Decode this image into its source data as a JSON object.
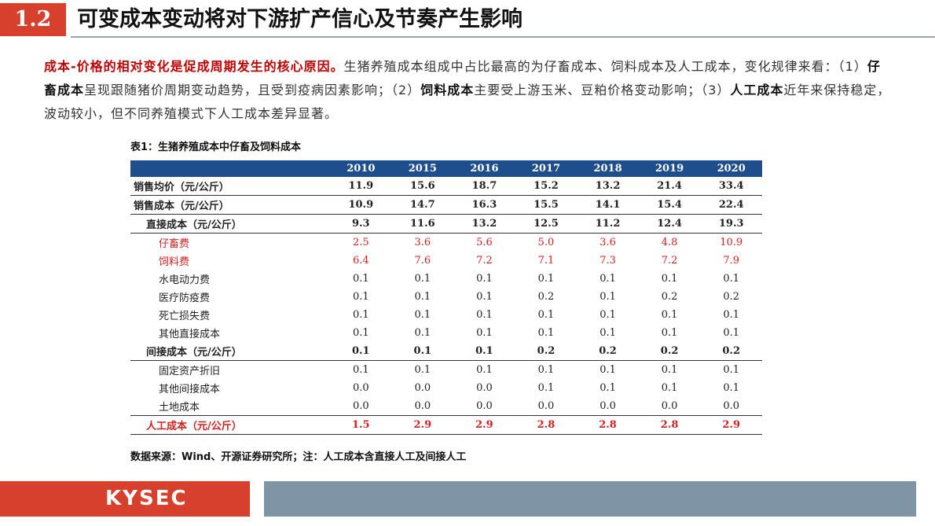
{
  "header": {
    "badge": "1.2",
    "title": "可变成本变动将对下游扩产信心及节奏产生影响"
  },
  "intro": {
    "lead": "成本-价格的相对变化是促成周期发生的核心原因。",
    "p1": "生猪养殖成本组成中占比最高的为仔畜成本、饲料成本及人工成本，变化规律来看：（1）",
    "k1": "仔畜成本",
    "p2": "呈现跟随猪价周期变动趋势，且受到疫病因素影响；（2）",
    "k2": "饲料成本",
    "p3": "主要受上游玉米、豆粕价格变动影响；（3）",
    "k3": "人工成本",
    "p4": "近年来保持稳定，波动较小，但不同养殖模式下人工成本差异显著。"
  },
  "table": {
    "caption": "表1：生猪养殖成本中仔畜及饲料成本",
    "years": [
      "2010",
      "2015",
      "2016",
      "2017",
      "2018",
      "2019",
      "2020"
    ],
    "rows": [
      {
        "label": "销售均价（元/公斤）",
        "values": [
          "11.9",
          "15.6",
          "18.7",
          "15.2",
          "13.2",
          "21.4",
          "33.4"
        ]
      },
      {
        "label": "销售成本（元/公斤）",
        "values": [
          "10.9",
          "14.7",
          "16.3",
          "15.5",
          "14.1",
          "15.4",
          "22.4"
        ]
      },
      {
        "label": "直接成本（元/公斤）",
        "values": [
          "9.3",
          "11.6",
          "13.2",
          "12.5",
          "11.2",
          "12.4",
          "19.3"
        ]
      },
      {
        "label": "仔畜费",
        "values": [
          "2.5",
          "3.6",
          "5.6",
          "5.0",
          "3.6",
          "4.8",
          "10.9"
        ]
      },
      {
        "label": "饲料费",
        "values": [
          "6.4",
          "7.6",
          "7.2",
          "7.1",
          "7.3",
          "7.2",
          "7.9"
        ]
      },
      {
        "label": "水电动力费",
        "values": [
          "0.1",
          "0.1",
          "0.1",
          "0.1",
          "0.1",
          "0.1",
          "0.1"
        ]
      },
      {
        "label": "医疗防疫费",
        "values": [
          "0.1",
          "0.1",
          "0.1",
          "0.2",
          "0.1",
          "0.2",
          "0.2"
        ]
      },
      {
        "label": "死亡损失费",
        "values": [
          "0.1",
          "0.1",
          "0.1",
          "0.1",
          "0.1",
          "0.1",
          "0.1"
        ]
      },
      {
        "label": "其他直接成本",
        "values": [
          "0.1",
          "0.1",
          "0.1",
          "0.1",
          "0.1",
          "0.1",
          "0.1"
        ]
      },
      {
        "label": "间接成本（元/公斤）",
        "values": [
          "0.1",
          "0.1",
          "0.1",
          "0.2",
          "0.2",
          "0.2",
          "0.2"
        ]
      },
      {
        "label": "固定资产折旧",
        "values": [
          "0.1",
          "0.1",
          "0.1",
          "0.1",
          "0.1",
          "0.1",
          "0.1"
        ]
      },
      {
        "label": "其他间接成本",
        "values": [
          "0.0",
          "0.0",
          "0.0",
          "0.1",
          "0.1",
          "0.1",
          "0.1"
        ]
      },
      {
        "label": "土地成本",
        "values": [
          "0.0",
          "0.0",
          "0.0",
          "0.0",
          "0.0",
          "0.0",
          "0.0"
        ]
      },
      {
        "label": "人工成本（元/公斤）",
        "values": [
          "1.5",
          "2.9",
          "2.9",
          "2.8",
          "2.8",
          "2.8",
          "2.9"
        ]
      }
    ]
  },
  "source": "数据来源：Wind、开源证券研究所；注：人工成本含直接人工及间接人工",
  "footer": {
    "logo": "KYSEC"
  },
  "colors": {
    "accent": "#d7402d",
    "table_header": "#1e4e8c",
    "highlight_red": "#d62020",
    "footer_bar": "#7f95a6"
  }
}
